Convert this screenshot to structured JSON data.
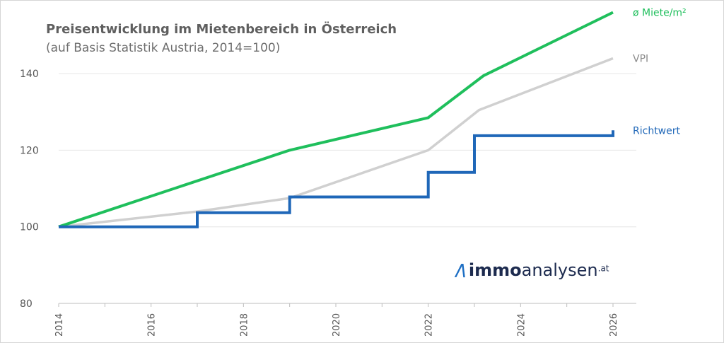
{
  "chart_data": {
    "type": "line",
    "title": "Preisentwicklung im Mietenbereich in Österreich",
    "subtitle": "(auf Basis Statistik Austria, 2014=100)",
    "xlabel": "",
    "ylabel": "",
    "xlim": [
      2014,
      2026
    ],
    "ylim": [
      80,
      150
    ],
    "x_ticks": [
      "2014",
      "2016",
      "2018",
      "2020",
      "2022",
      "2024",
      "2026"
    ],
    "y_ticks": [
      "80",
      "100",
      "120",
      "140"
    ],
    "grid": "horizontal",
    "series": [
      {
        "name": "ø Miete/m²",
        "color": "#1fbf5c",
        "style": "line",
        "points": [
          [
            2014,
            100
          ],
          [
            2019,
            120
          ],
          [
            2022,
            128.5
          ],
          [
            2023.2,
            139.5
          ],
          [
            2026,
            156
          ]
        ]
      },
      {
        "name": "VPI",
        "color": "#d0d0d0",
        "style": "line",
        "points": [
          [
            2014,
            100
          ],
          [
            2017,
            104
          ],
          [
            2019,
            107.5
          ],
          [
            2022,
            120
          ],
          [
            2023.1,
            130.5
          ],
          [
            2026,
            144
          ]
        ]
      },
      {
        "name": "Richtwert",
        "color": "#1f67b8",
        "style": "step",
        "points": [
          [
            2014,
            100
          ],
          [
            2017,
            100
          ],
          [
            2017,
            103.7
          ],
          [
            2019,
            103.7
          ],
          [
            2019,
            107.8
          ],
          [
            2022,
            107.8
          ],
          [
            2022,
            114.2
          ],
          [
            2023,
            114.2
          ],
          [
            2023,
            123.8
          ],
          [
            2026,
            123.8
          ],
          [
            2026,
            125.2
          ]
        ]
      }
    ]
  },
  "logo": {
    "mark": "/\\",
    "word_bold": "immo",
    "word_regular": "analysen",
    "suffix": ".at"
  }
}
